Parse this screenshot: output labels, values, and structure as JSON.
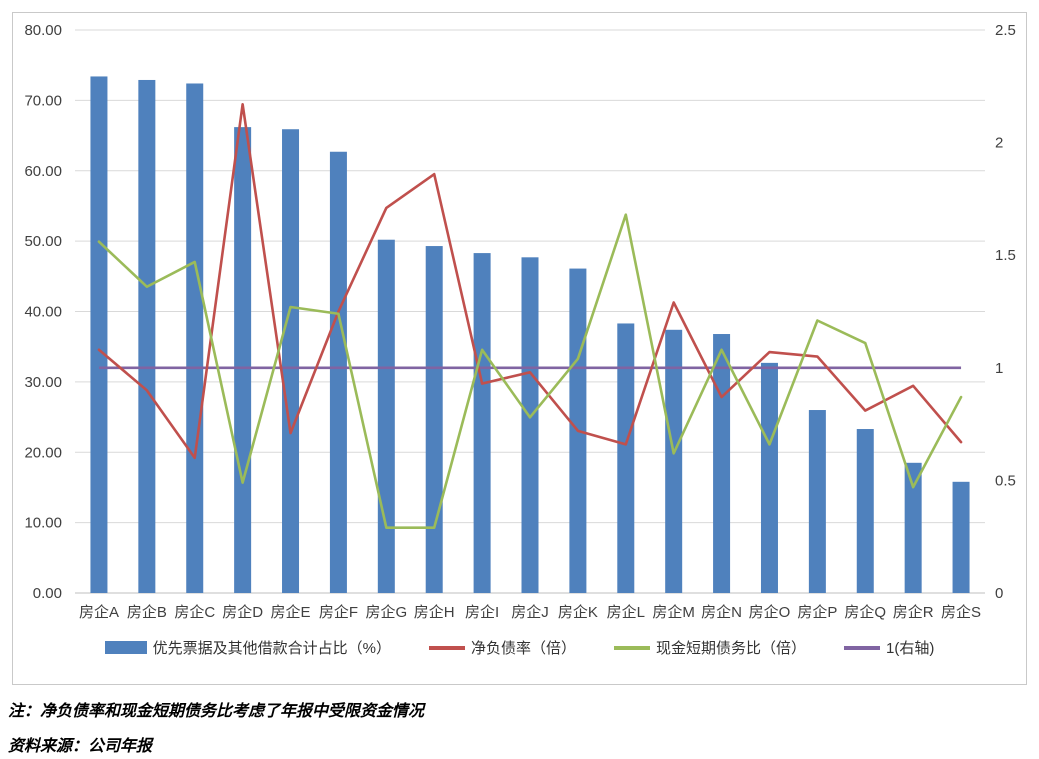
{
  "chart_data": {
    "type": "bar",
    "subtype": "combo-bar-line-dual-axis",
    "categories": [
      "房企A",
      "房企B",
      "房企C",
      "房企D",
      "房企E",
      "房企F",
      "房企G",
      "房企H",
      "房企I",
      "房企J",
      "房企K",
      "房企L",
      "房企M",
      "房企N",
      "房企O",
      "房企P",
      "房企Q",
      "房企R",
      "房企S"
    ],
    "series": [
      {
        "name": "优先票据及其他借款合计占比（%）",
        "type": "bar",
        "axis": "left",
        "color": "#4F81BD",
        "values": [
          73.4,
          72.9,
          72.4,
          66.2,
          65.9,
          62.7,
          50.2,
          49.3,
          48.3,
          47.7,
          46.1,
          38.3,
          37.4,
          36.8,
          32.7,
          26.0,
          23.3,
          18.5,
          15.8
        ]
      },
      {
        "name": "净负债率（倍）",
        "type": "line",
        "axis": "right",
        "color": "#C0504D",
        "values": [
          1.08,
          0.9,
          0.6,
          2.17,
          0.71,
          1.25,
          1.71,
          1.86,
          0.93,
          0.98,
          0.72,
          0.66,
          1.29,
          0.87,
          1.07,
          1.05,
          0.81,
          0.92,
          0.67
        ]
      },
      {
        "name": "现金短期债务比（倍）",
        "type": "line",
        "axis": "right",
        "color": "#9BBB59",
        "values": [
          1.56,
          1.36,
          1.47,
          0.49,
          1.27,
          1.24,
          0.29,
          0.29,
          1.08,
          0.78,
          1.04,
          1.68,
          0.62,
          1.08,
          0.66,
          1.21,
          1.11,
          0.47,
          0.87
        ]
      },
      {
        "name": "1(右轴)",
        "type": "hline",
        "axis": "right",
        "color": "#8064A2",
        "constant": 1
      }
    ],
    "title": "",
    "xlabel": "",
    "ylabel": "",
    "left_axis": {
      "min": 0,
      "max": 80,
      "tick_labels": [
        "80.00",
        "70.00",
        "60.00",
        "50.00",
        "40.00",
        "30.00",
        "20.00",
        "10.00",
        "0.00"
      ]
    },
    "right_axis": {
      "min": 0,
      "max": 2.5,
      "tick_labels": [
        "2.5",
        "2",
        "1.5",
        "1",
        "0.5",
        "0"
      ]
    },
    "grid": true,
    "legend_position": "bottom"
  },
  "colors": {
    "bar_blue": "#4F81BD",
    "line_red": "#C0504D",
    "line_green": "#9BBB59",
    "line_purple": "#8064A2",
    "gridline": "#D9D9D9",
    "axis_text": "#404040",
    "frame_border": "#C9C9C9"
  },
  "notes": {
    "note": "注：净负债率和现金短期债务比考虑了年报中受限资金情况",
    "source": "资料来源：公司年报"
  }
}
